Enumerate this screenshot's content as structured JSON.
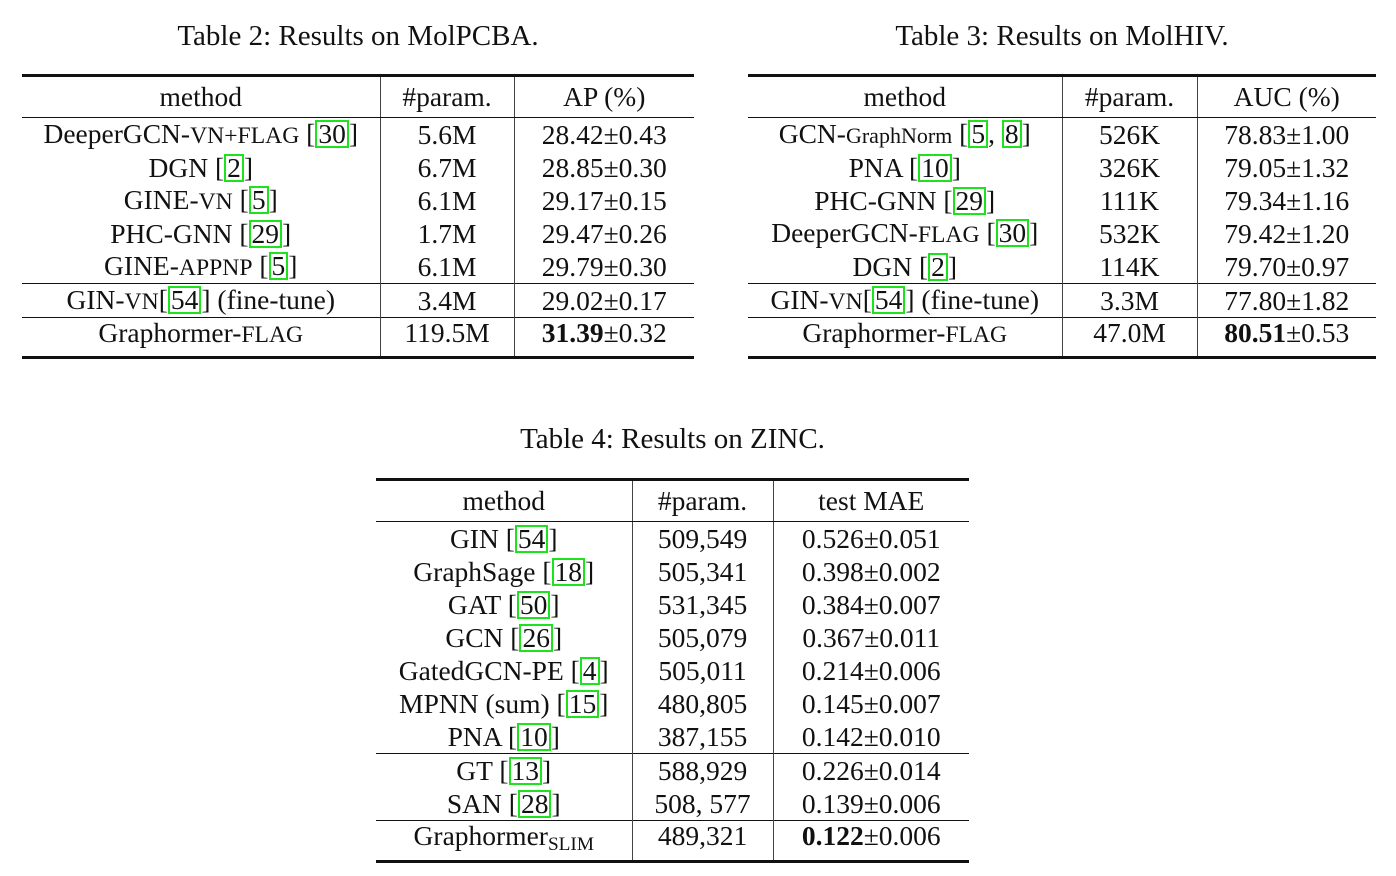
{
  "tables": [
    {
      "id": "molpcba",
      "caption": "Table 2: Results on MolPCBA.",
      "headers": [
        "method",
        "#param.",
        "AP (%)"
      ],
      "groups": [
        [
          {
            "method": {
              "name": "DeeperGCN-",
              "sc": "VN+FLAG",
              "refs": [
                "30"
              ]
            },
            "param": "5.6M",
            "score": "28.42",
            "std": "±0.43"
          },
          {
            "method": {
              "name": "DGN",
              "refs": [
                "2"
              ]
            },
            "param": "6.7M",
            "score": "28.85",
            "std": "±0.30"
          },
          {
            "method": {
              "name": "GINE-",
              "sc": "VN",
              "refs": [
                "5"
              ]
            },
            "param": "6.1M",
            "score": "29.17",
            "std": "±0.15"
          },
          {
            "method": {
              "name": "PHC-GNN",
              "refs": [
                "29"
              ]
            },
            "param": "1.7M",
            "score": "29.47",
            "std": "±0.26"
          },
          {
            "method": {
              "name": "GINE-",
              "sc": "APPNP",
              "refs": [
                "5"
              ]
            },
            "param": "6.1M",
            "score": "29.79",
            "std": "±0.30"
          }
        ],
        [
          {
            "method": {
              "name": "GIN-",
              "sc": "VN",
              "refs": [
                "54"
              ],
              "nospace": true,
              "post": " (fine-tune)"
            },
            "param": "3.4M",
            "score": "29.02",
            "std": "±0.17"
          }
        ],
        [
          {
            "method": {
              "name": "Graphormer-",
              "sc": "FLAG"
            },
            "param": "119.5M",
            "score": "31.39",
            "std": "±0.32",
            "best": true
          }
        ]
      ]
    },
    {
      "id": "molhiv",
      "caption": "Table 3: Results on MolHIV.",
      "headers": [
        "method",
        "#param.",
        "AUC (%)"
      ],
      "groups": [
        [
          {
            "method": {
              "name": "GCN-",
              "smallname": "GraphNorm",
              "refs": [
                "5",
                "8"
              ]
            },
            "param": "526K",
            "score": "78.83",
            "std": "±1.00"
          },
          {
            "method": {
              "name": "PNA",
              "refs": [
                "10"
              ]
            },
            "param": "326K",
            "score": "79.05",
            "std": "±1.32"
          },
          {
            "method": {
              "name": "PHC-GNN",
              "refs": [
                "29"
              ]
            },
            "param": "111K",
            "score": "79.34",
            "std": "±1.16"
          },
          {
            "method": {
              "name": "DeeperGCN-",
              "sc": "FLAG",
              "refs": [
                "30"
              ]
            },
            "param": "532K",
            "score": "79.42",
            "std": "±1.20"
          },
          {
            "method": {
              "name": "DGN",
              "refs": [
                "2"
              ]
            },
            "param": "114K",
            "score": "79.70",
            "std": "±0.97"
          }
        ],
        [
          {
            "method": {
              "name": "GIN-",
              "sc": "VN",
              "refs": [
                "54"
              ],
              "nospace": true,
              "post": " (fine-tune)"
            },
            "param": "3.3M",
            "score": "77.80",
            "std": "±1.82"
          }
        ],
        [
          {
            "method": {
              "name": "Graphormer-",
              "sc": "FLAG"
            },
            "param": "47.0M",
            "score": "80.51",
            "std": "±0.53",
            "best": true
          }
        ]
      ]
    },
    {
      "id": "zinc",
      "caption": "Table 4: Results on ZINC.",
      "headers": [
        "method",
        "#param.",
        "test MAE"
      ],
      "groups": [
        [
          {
            "method": {
              "name": "GIN",
              "refs": [
                "54"
              ]
            },
            "param": "509,549",
            "score": "0.526",
            "std": "±0.051"
          },
          {
            "method": {
              "name": "GraphSage",
              "refs": [
                "18"
              ]
            },
            "param": "505,341",
            "score": "0.398",
            "std": "±0.002"
          },
          {
            "method": {
              "name": "GAT",
              "refs": [
                "50"
              ]
            },
            "param": "531,345",
            "score": "0.384",
            "std": "±0.007"
          },
          {
            "method": {
              "name": "GCN",
              "refs": [
                "26"
              ]
            },
            "param": "505,079",
            "score": "0.367",
            "std": "±0.011"
          },
          {
            "method": {
              "name": "GatedGCN-PE",
              "refs": [
                "4"
              ]
            },
            "param": "505,011",
            "score": "0.214",
            "std": "±0.006"
          },
          {
            "method": {
              "name": "MPNN (sum)",
              "refs": [
                "15"
              ]
            },
            "param": "480,805",
            "score": "0.145",
            "std": "±0.007"
          },
          {
            "method": {
              "name": "PNA",
              "refs": [
                "10"
              ]
            },
            "param": "387,155",
            "score": "0.142",
            "std": "±0.010"
          }
        ],
        [
          {
            "method": {
              "name": "GT",
              "refs": [
                "13"
              ]
            },
            "param": "588,929",
            "score": "0.226",
            "std": "±0.014"
          },
          {
            "method": {
              "name": "SAN",
              "refs": [
                "28"
              ]
            },
            "param": "508, 577",
            "score": "0.139",
            "std": "±0.006"
          }
        ],
        [
          {
            "method": {
              "name": "Graphormer",
              "sub": "SLIM"
            },
            "param": "489,321",
            "score": "0.122",
            "std": "±0.006",
            "best": true
          }
        ]
      ]
    }
  ]
}
